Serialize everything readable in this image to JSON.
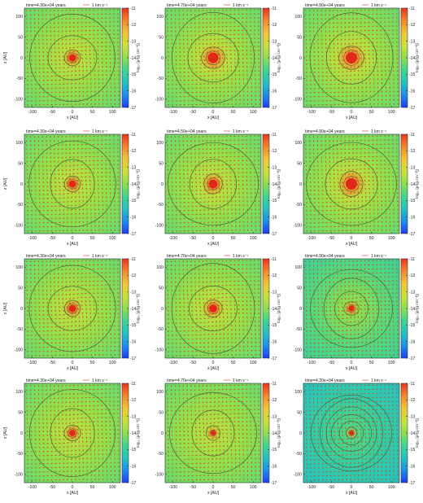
{
  "figure": {
    "colors": {
      "cmap": [
        "#1f3ef5",
        "#1f8fe8",
        "#25c2c0",
        "#3fd68e",
        "#8ee04d",
        "#c9e23a",
        "#f0c637",
        "#f3872c",
        "#e8351f"
      ],
      "arrow": "#d63a2a",
      "contour": "#3c6a3c",
      "core": "#e02818",
      "frame": "#222222"
    }
  },
  "chart_data": [
    {
      "type": "heatmap",
      "row": 0,
      "col": 0,
      "title": "time=4.30e+04 years",
      "legend": "1 km s⁻¹",
      "xlabel": "x [AU]",
      "ylabel": "z [AU]",
      "cblabel": "log₁₀ [ρ/(g cm⁻³)]",
      "xlim": [
        -120,
        120
      ],
      "ylim": [
        -120,
        120
      ],
      "xticks": [
        "-100",
        "-50",
        "0",
        "50",
        "100"
      ],
      "yticks": [
        "100",
        "50",
        "0",
        "-50",
        "-100"
      ],
      "cbar_range": [
        -17,
        -11
      ],
      "cbar_ticks": [
        "-11",
        "-12",
        "-13",
        "-14",
        "-15",
        "-16",
        "-17"
      ],
      "bg_level": -14.1,
      "core_radius_au": 9,
      "contour_radii_au": [
        20,
        58,
        108
      ],
      "show_xlabel": false,
      "show_ylabel": true,
      "show_xticks": false
    },
    {
      "type": "heatmap",
      "row": 0,
      "col": 1,
      "title": "time=4.70e+04 years",
      "legend": "1 km s⁻¹",
      "xlabel": "x [AU]",
      "ylabel": "z [AU]",
      "cblabel": "log₁₀ [ρ/(g cm⁻³)]",
      "xlim": [
        -120,
        120
      ],
      "ylim": [
        -120,
        120
      ],
      "xticks": [
        "-100",
        "-50",
        "0",
        "50",
        "100"
      ],
      "yticks": [
        "100",
        "50",
        "0",
        "-50",
        "-100"
      ],
      "cbar_range": [
        -17,
        -11
      ],
      "cbar_ticks": [
        "-11",
        "-12",
        "-13",
        "-14",
        "-15",
        "-16",
        "-17"
      ],
      "bg_level": -14.1,
      "core_radius_au": 13,
      "contour_radii_au": [
        28,
        62,
        108
      ],
      "show_xlabel": false,
      "show_ylabel": false,
      "show_xticks": false
    },
    {
      "type": "heatmap",
      "row": 0,
      "col": 2,
      "title": "time=4.90e+04 years",
      "legend": "1 km s⁻¹",
      "xlabel": "x [AU]",
      "ylabel": "z [AU]",
      "cblabel": "log₁₀ [ρ/(g cm⁻³)]",
      "xlim": [
        -120,
        120
      ],
      "ylim": [
        -120,
        120
      ],
      "xticks": [
        "-100",
        "-50",
        "0",
        "50",
        "100"
      ],
      "yticks": [
        "100",
        "50",
        "0",
        "-50",
        "-100"
      ],
      "cbar_range": [
        -17,
        -11
      ],
      "cbar_ticks": [
        "-11",
        "-12",
        "-13",
        "-14",
        "-15",
        "-16",
        "-17"
      ],
      "bg_level": -14.1,
      "core_radius_au": 14,
      "contour_radii_au": [
        30,
        64,
        108
      ],
      "show_xlabel": false,
      "show_ylabel": false,
      "show_xticks": false
    },
    {
      "type": "heatmap",
      "row": 1,
      "col": 0,
      "title": "time=4.30e+04 years",
      "legend": "1 km s⁻¹",
      "xlabel": "x [AU]",
      "ylabel": "z [AU]",
      "cblabel": "log₁₀ [ρ/(g cm⁻³)]",
      "xlim": [
        -120,
        120
      ],
      "ylim": [
        -120,
        120
      ],
      "xticks": [
        "-100",
        "-50",
        "0",
        "50",
        "100"
      ],
      "yticks": [
        "100",
        "50",
        "0",
        "-50",
        "-100"
      ],
      "cbar_range": [
        -17,
        -11
      ],
      "cbar_ticks": [
        "-11",
        "-12",
        "-13",
        "-14",
        "-15",
        "-16",
        "-17"
      ],
      "bg_level": -14.1,
      "core_radius_au": 9,
      "contour_radii_au": [
        20,
        58,
        108
      ],
      "show_xlabel": false,
      "show_ylabel": true,
      "show_xticks": false
    },
    {
      "type": "heatmap",
      "row": 1,
      "col": 1,
      "title": "time=4.50e+04 years",
      "legend": "1 km s⁻¹",
      "xlabel": "x [AU]",
      "ylabel": "z [AU]",
      "cblabel": "log₁₀ [ρ/(g cm⁻³)]",
      "xlim": [
        -120,
        120
      ],
      "ylim": [
        -120,
        120
      ],
      "xticks": [
        "-100",
        "-50",
        "0",
        "50",
        "100"
      ],
      "yticks": [
        "100",
        "50",
        "0",
        "-50",
        "-100"
      ],
      "cbar_range": [
        -17,
        -11
      ],
      "cbar_ticks": [
        "-11",
        "-12",
        "-13",
        "-14",
        "-15",
        "-16",
        "-17"
      ],
      "bg_level": -14.1,
      "core_radius_au": 11,
      "contour_radii_au": [
        24,
        60,
        108
      ],
      "show_xlabel": false,
      "show_ylabel": false,
      "show_xticks": false
    },
    {
      "type": "heatmap",
      "row": 1,
      "col": 2,
      "title": "time=4.90e+04 years",
      "legend": "1 km s⁻¹",
      "xlabel": "x [AU]",
      "ylabel": "z [AU]",
      "cblabel": "log₁₀ [ρ/(g cm⁻³)]",
      "xlim": [
        -120,
        120
      ],
      "ylim": [
        -120,
        120
      ],
      "xticks": [
        "-100",
        "-50",
        "0",
        "50",
        "100"
      ],
      "yticks": [
        "100",
        "50",
        "0",
        "-50",
        "-100"
      ],
      "cbar_range": [
        -17,
        -11
      ],
      "cbar_ticks": [
        "-11",
        "-12",
        "-13",
        "-14",
        "-15",
        "-16",
        "-17"
      ],
      "bg_level": -14.1,
      "core_radius_au": 14,
      "contour_radii_au": [
        30,
        64,
        108
      ],
      "show_xlabel": false,
      "show_ylabel": false,
      "show_xticks": false
    },
    {
      "type": "heatmap",
      "row": 2,
      "col": 0,
      "title": "time=4.30e+04 years",
      "legend": "1 km s⁻¹",
      "xlabel": "x [AU]",
      "ylabel": "z [AU]",
      "cblabel": "log₁₀ [ρ/(g cm⁻³)]",
      "xlim": [
        -120,
        120
      ],
      "ylim": [
        -120,
        120
      ],
      "xticks": [
        "-100",
        "-50",
        "0",
        "50",
        "100"
      ],
      "yticks": [
        "100",
        "50",
        "0",
        "-50",
        "-100"
      ],
      "cbar_range": [
        -17,
        -11
      ],
      "cbar_ticks": [
        "-11",
        "-12",
        "-13",
        "-14",
        "-15",
        "-16",
        "-17"
      ],
      "bg_level": -14.1,
      "core_radius_au": 9,
      "contour_radii_au": [
        20,
        58,
        108
      ],
      "show_xlabel": false,
      "show_ylabel": true,
      "show_xticks": false
    },
    {
      "type": "heatmap",
      "row": 2,
      "col": 1,
      "title": "time=4.70e+04 years",
      "legend": "1 km s⁻¹",
      "xlabel": "x [AU]",
      "ylabel": "z [AU]",
      "cblabel": "log₁₀ [ρ/(g cm⁻³)]",
      "xlim": [
        -120,
        120
      ],
      "ylim": [
        -120,
        120
      ],
      "xticks": [
        "-100",
        "-50",
        "0",
        "50",
        "100"
      ],
      "yticks": [
        "100",
        "50",
        "0",
        "-50",
        "-100"
      ],
      "cbar_range": [
        -17,
        -11
      ],
      "cbar_ticks": [
        "-11",
        "-12",
        "-13",
        "-14",
        "-15",
        "-16",
        "-17"
      ],
      "bg_level": -14.1,
      "core_radius_au": 10,
      "contour_radii_au": [
        22,
        58,
        108
      ],
      "show_xlabel": false,
      "show_ylabel": false,
      "show_xticks": false
    },
    {
      "type": "heatmap",
      "row": 2,
      "col": 2,
      "title": "time=4.90e+04 years",
      "legend": "1 km s⁻¹",
      "xlabel": "x [AU]",
      "ylabel": "z [AU]",
      "cblabel": "log₁₀ [ρ/(g cm⁻³)]",
      "xlim": [
        -120,
        120
      ],
      "ylim": [
        -120,
        120
      ],
      "xticks": [
        "-100",
        "-50",
        "0",
        "50",
        "100"
      ],
      "yticks": [
        "100",
        "50",
        "0",
        "-50",
        "-100"
      ],
      "cbar_range": [
        -17,
        -11
      ],
      "cbar_ticks": [
        "-11",
        "-12",
        "-13",
        "-14",
        "-15",
        "-16",
        "-17"
      ],
      "bg_level": -14.6,
      "core_radius_au": 7,
      "contour_radii_au": [
        18,
        42,
        72,
        100
      ],
      "show_xlabel": false,
      "show_ylabel": false,
      "show_xticks": false
    },
    {
      "type": "heatmap",
      "row": 3,
      "col": 0,
      "title": "time=4.30e+04 years",
      "legend": "1 km s⁻¹",
      "xlabel": "x [AU]",
      "ylabel": "z [AU]",
      "cblabel": "log₁₀ [ρ/(g cm⁻³)]",
      "xlim": [
        -120,
        120
      ],
      "ylim": [
        -120,
        120
      ],
      "xticks": [
        "-100",
        "-50",
        "0",
        "50",
        "100"
      ],
      "yticks": [
        "100",
        "50",
        "0",
        "-50",
        "-100"
      ],
      "cbar_range": [
        -17,
        -11
      ],
      "cbar_ticks": [
        "-11",
        "-12",
        "-13",
        "-14",
        "-15",
        "-16",
        "-17"
      ],
      "bg_level": -14.1,
      "core_radius_au": 8,
      "contour_radii_au": [
        20,
        58,
        108
      ],
      "show_xlabel": true,
      "show_ylabel": true,
      "show_xticks": true
    },
    {
      "type": "heatmap",
      "row": 3,
      "col": 1,
      "title": "time=4.70e+04 years",
      "legend": "1 km s⁻¹",
      "xlabel": "x [AU]",
      "ylabel": "z [AU]",
      "cblabel": "log₁₀ [ρ/(g cm⁻³)]",
      "xlim": [
        -120,
        120
      ],
      "ylim": [
        -120,
        120
      ],
      "xticks": [
        "-100",
        "-50",
        "0",
        "50",
        "100"
      ],
      "yticks": [
        "100",
        "50",
        "0",
        "-50",
        "-100"
      ],
      "cbar_range": [
        -17,
        -11
      ],
      "cbar_ticks": [
        "-11",
        "-12",
        "-13",
        "-14",
        "-15",
        "-16",
        "-17"
      ],
      "bg_level": -14.1,
      "core_radius_au": 6,
      "contour_radii_au": [
        18,
        55,
        105
      ],
      "show_xlabel": true,
      "show_ylabel": false,
      "show_xticks": true
    },
    {
      "type": "heatmap",
      "row": 3,
      "col": 2,
      "title": "time=4.30e+04 years",
      "legend": "1 km s⁻¹",
      "xlabel": "x [AU]",
      "ylabel": "z [AU]",
      "cblabel": "log₁₀ [ρ/(g cm⁻³)]",
      "xlim": [
        -120,
        120
      ],
      "ylim": [
        -120,
        120
      ],
      "xticks": [
        "-100",
        "-50",
        "0",
        "50",
        "100"
      ],
      "yticks": [
        "100",
        "50",
        "0",
        "-50",
        "-100"
      ],
      "cbar_range": [
        -17,
        -11
      ],
      "cbar_ticks": [
        "-11",
        "-12",
        "-13",
        "-14",
        "-15",
        "-16",
        "-17"
      ],
      "bg_level": -15.2,
      "core_radius_au": 5,
      "contour_radii_au": [
        14,
        30,
        48,
        64,
        82,
        98
      ],
      "show_xlabel": true,
      "show_ylabel": false,
      "show_xticks": true
    }
  ]
}
